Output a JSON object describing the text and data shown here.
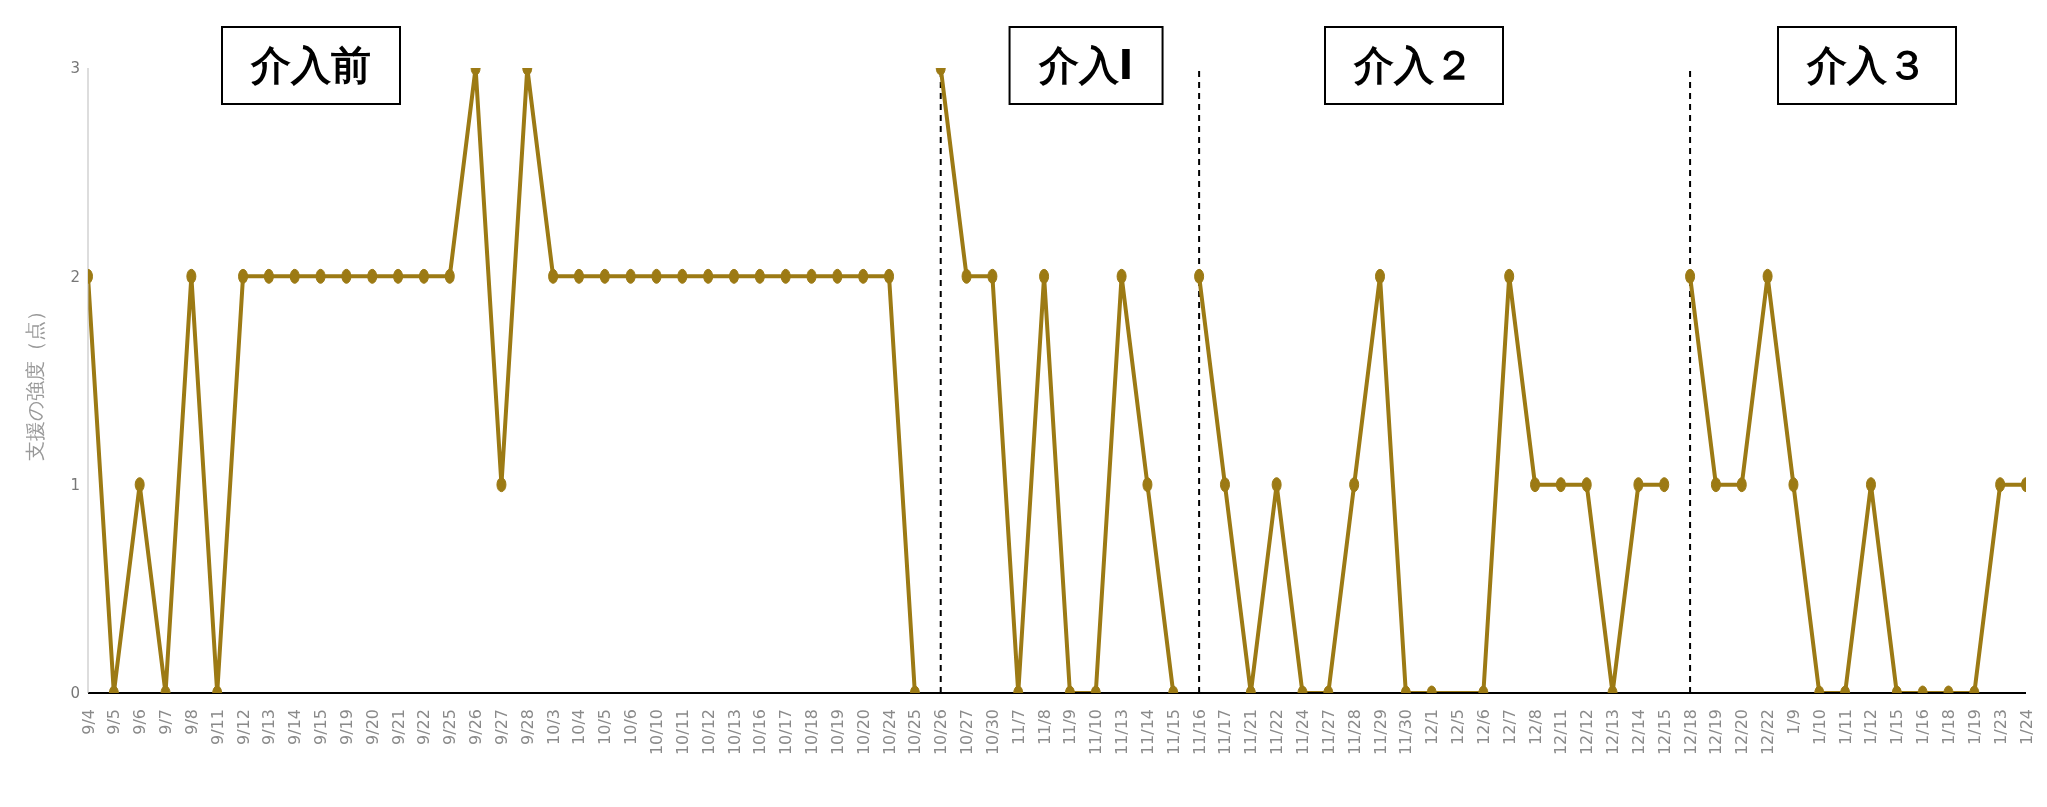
{
  "chart_data": {
    "type": "line",
    "ylabel": "支援の強度（点）",
    "categories": [
      "9/4",
      "9/5",
      "9/6",
      "9/7",
      "9/8",
      "9/11",
      "9/12",
      "9/13",
      "9/14",
      "9/15",
      "9/19",
      "9/20",
      "9/21",
      "9/22",
      "9/25",
      "9/26",
      "9/27",
      "9/28",
      "10/3",
      "10/4",
      "10/5",
      "10/6",
      "10/10",
      "10/11",
      "10/12",
      "10/13",
      "10/16",
      "10/17",
      "10/18",
      "10/19",
      "10/20",
      "10/24",
      "10/25",
      "10/26",
      "10/27",
      "10/30",
      "11/7",
      "11/8",
      "11/9",
      "11/10",
      "11/13",
      "11/14",
      "11/15",
      "11/16",
      "11/17",
      "11/21",
      "11/22",
      "11/24",
      "11/27",
      "11/28",
      "11/29",
      "11/30",
      "12/1",
      "12/5",
      "12/6",
      "12/7",
      "12/8",
      "12/11",
      "12/12",
      "12/13",
      "12/14",
      "12/15",
      "12/18",
      "12/19",
      "12/20",
      "12/22",
      "1/9",
      "1/10",
      "1/11",
      "1/12",
      "1/15",
      "1/16",
      "1/18",
      "1/19",
      "1/23",
      "1/24"
    ],
    "series": [
      {
        "color": "#9c7a14",
        "values": [
          2,
          0,
          1,
          0,
          2,
          0,
          2,
          2,
          2,
          2,
          2,
          2,
          2,
          2,
          2,
          3,
          1,
          3,
          2,
          2,
          2,
          2,
          2,
          2,
          2,
          2,
          2,
          2,
          2,
          2,
          2,
          2,
          0,
          null,
          null,
          null,
          null,
          null,
          null,
          null,
          null,
          null,
          null,
          null,
          null,
          null,
          null,
          null,
          null,
          null,
          null,
          null,
          null,
          null,
          null,
          null,
          null,
          null,
          null,
          null,
          null,
          null,
          null,
          null,
          null,
          null,
          null,
          null,
          null,
          null,
          null,
          null,
          null,
          null,
          null,
          null
        ]
      },
      {
        "color": "#9c7a14",
        "values": [
          null,
          null,
          null,
          null,
          null,
          null,
          null,
          null,
          null,
          null,
          null,
          null,
          null,
          null,
          null,
          null,
          null,
          null,
          null,
          null,
          null,
          null,
          null,
          null,
          null,
          null,
          null,
          null,
          null,
          null,
          null,
          null,
          null,
          3,
          2,
          2,
          0,
          2,
          0,
          0,
          2,
          1,
          0,
          null,
          null,
          null,
          null,
          null,
          null,
          null,
          null,
          null,
          null,
          null,
          null,
          null,
          null,
          null,
          null,
          null,
          null,
          null,
          null,
          null,
          null,
          null,
          null,
          null,
          null,
          null,
          null,
          null,
          null,
          null,
          null,
          null
        ]
      },
      {
        "color": "#9c7a14",
        "values": [
          null,
          null,
          null,
          null,
          null,
          null,
          null,
          null,
          null,
          null,
          null,
          null,
          null,
          null,
          null,
          null,
          null,
          null,
          null,
          null,
          null,
          null,
          null,
          null,
          null,
          null,
          null,
          null,
          null,
          null,
          null,
          null,
          null,
          null,
          null,
          null,
          null,
          null,
          null,
          null,
          null,
          null,
          null,
          2,
          1,
          0,
          1,
          0,
          0,
          1,
          2,
          0,
          0,
          null,
          0,
          2,
          1,
          1,
          1,
          0,
          1,
          1,
          null,
          null,
          null,
          null,
          null,
          null,
          null,
          null,
          null,
          null,
          null,
          null,
          null,
          null
        ]
      },
      {
        "color": "#9c7a14",
        "values": [
          null,
          null,
          null,
          null,
          null,
          null,
          null,
          null,
          null,
          null,
          null,
          null,
          null,
          null,
          null,
          null,
          null,
          null,
          null,
          null,
          null,
          null,
          null,
          null,
          null,
          null,
          null,
          null,
          null,
          null,
          null,
          null,
          null,
          null,
          null,
          null,
          null,
          null,
          null,
          null,
          null,
          null,
          null,
          null,
          null,
          null,
          null,
          null,
          null,
          null,
          null,
          null,
          null,
          null,
          null,
          null,
          null,
          null,
          null,
          null,
          null,
          null,
          2,
          1,
          1,
          2,
          1,
          0,
          0,
          1,
          0,
          0,
          0,
          0,
          1,
          1
        ]
      }
    ],
    "ylim": [
      0,
      3
    ],
    "yticks": [
      0,
      1,
      2,
      3
    ],
    "marker": "circle",
    "line_style": "solid",
    "ref_lines": [
      {
        "axis": "x",
        "value": "10/26",
        "color": "#000000",
        "line_style": "dashed"
      },
      {
        "axis": "x",
        "value": "11/16",
        "color": "#000000",
        "line_style": "dashed"
      },
      {
        "axis": "x",
        "value": "12/18",
        "color": "#000000",
        "line_style": "dashed"
      }
    ],
    "annotations": [
      "介入前",
      "介入Ⅰ",
      "介入２",
      "介入３"
    ]
  }
}
